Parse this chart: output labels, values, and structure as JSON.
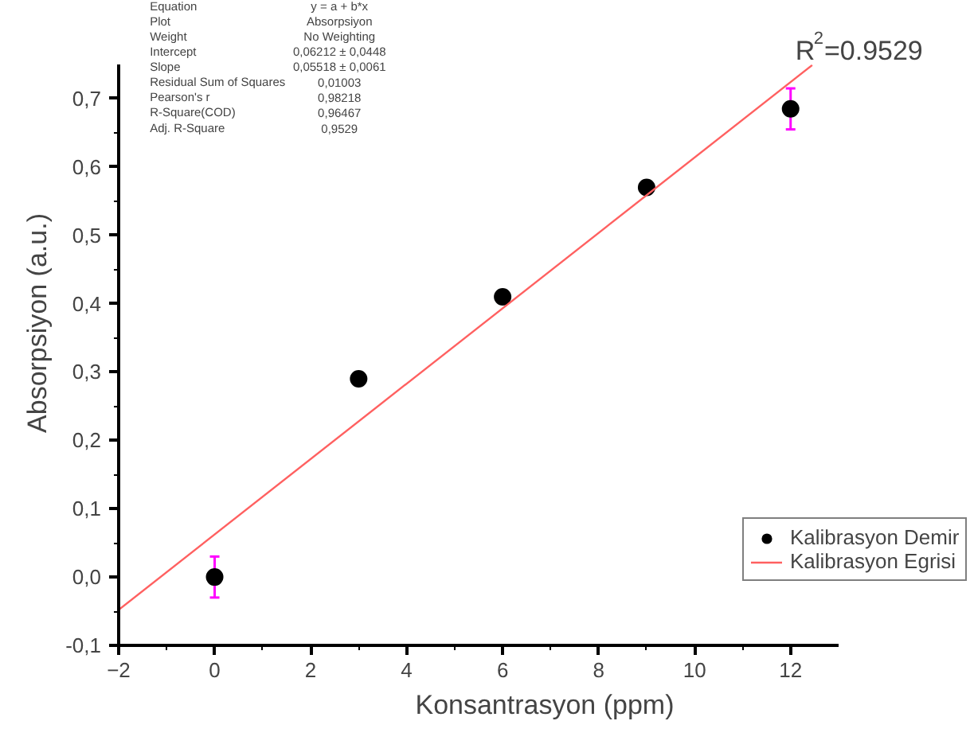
{
  "chart_data": {
    "type": "scatter",
    "xlabel": "Konsantrasyon (ppm)",
    "ylabel": "Absorpsiyon (a.u.)",
    "series": [
      {
        "name": "Kalibrasyon Demir",
        "marker": "circle",
        "color": "#000000",
        "x": [
          0,
          3,
          6,
          9,
          12
        ],
        "values": [
          0.0,
          0.29,
          0.41,
          0.57,
          0.685
        ],
        "errors": [
          0.03,
          null,
          null,
          null,
          0.03
        ]
      },
      {
        "name": "Kalibrasyon Egrisi",
        "type": "line",
        "color": "#ff6060",
        "x": [
          -2,
          12.45
        ],
        "values": [
          -0.048,
          0.749
        ]
      }
    ],
    "xlim": [
      -2,
      13
    ],
    "ylim": [
      -0.1,
      0.75
    ],
    "xticks": [
      -2,
      0,
      2,
      4,
      6,
      8,
      10,
      12
    ],
    "yticks": [
      {
        "value": -0.1,
        "label": "-0,1"
      },
      {
        "value": 0.0,
        "label": "0,0"
      },
      {
        "value": 0.1,
        "label": "0,1"
      },
      {
        "value": 0.2,
        "label": "0,2"
      },
      {
        "value": 0.3,
        "label": "0,3"
      },
      {
        "value": 0.4,
        "label": "0,4"
      },
      {
        "value": 0.5,
        "label": "0,5"
      },
      {
        "value": 0.6,
        "label": "0,6"
      },
      {
        "value": 0.7,
        "label": "0,7"
      }
    ],
    "annotations": [
      "Equation",
      "y = a + b*x",
      "Plot",
      "Absorpsiyon",
      "Weight",
      "No Weighting",
      "Intercept",
      "0,06212 ± 0,0448",
      "Slope",
      "0,05518 ± 0,0061",
      "Residual Sum of Squares",
      "0,01003",
      "Pearson's r",
      "0,98218",
      "R-Square(COD)",
      "0,96467",
      "Adj. R-Square",
      "0,9529",
      "R$^{2}$=0.9529"
    ],
    "grid": false,
    "legend": "bottom right",
    "line_style": "solid"
  }
}
